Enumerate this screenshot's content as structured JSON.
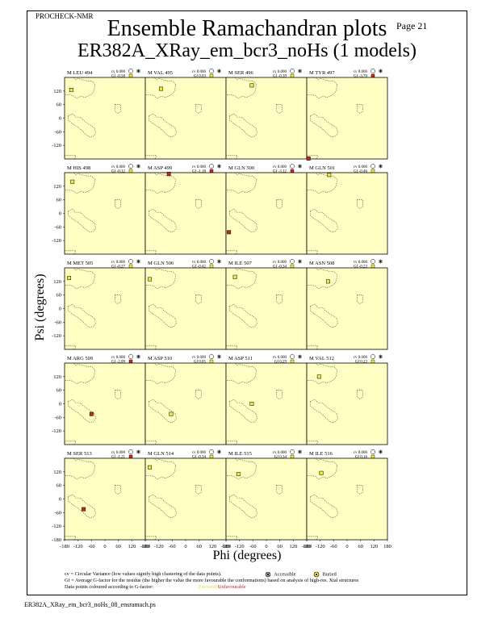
{
  "header": {
    "program": "PROCHECK-NMR",
    "page": "Page 21"
  },
  "title": "Ensemble Ramachandran plots",
  "subtitle": "ER382A_XRay_em_bcr3_noHs (1 models)",
  "chart_data": {
    "type": "scatter",
    "xlabel": "Phi (degrees)",
    "ylabel": "Psi (degrees)",
    "xlim": [
      -180,
      180
    ],
    "ylim": [
      -180,
      180
    ],
    "x_ticks": [
      "-180",
      "-120",
      "-60",
      "0",
      "60",
      "120",
      "180"
    ],
    "y_ticks": [
      "120",
      "60",
      "0",
      "-60",
      "-120"
    ],
    "bottom_y_ticks": [
      "120",
      "60",
      "0",
      "-60",
      "-120",
      "-180"
    ],
    "grid": false,
    "point_colors": {
      "favourable": "#f1e83c",
      "unfavourable": "#c8281e"
    },
    "panels": [
      {
        "residue": "M LEU 494",
        "cv": "cv 0.000",
        "gf": "Gf -0.58",
        "gf_value": -0.58,
        "points": [
          [
            -150,
            125
          ]
        ]
      },
      {
        "residue": "M VAL 495",
        "cv": "cv 0.000",
        "gf": "Gf 0.03",
        "gf_value": 0.03,
        "points": [
          [
            -110,
            130
          ]
        ]
      },
      {
        "residue": "M SER 496",
        "cv": "cv 0.000",
        "gf": "Gf -0.39",
        "gf_value": -0.39,
        "points": [
          [
            -65,
            145
          ]
        ]
      },
      {
        "residue": "M TYR 497",
        "cv": "cv 0.000",
        "gf": "Gf -3.70",
        "gf_value": -3.7,
        "points": [
          [
            -172,
            -178
          ]
        ]
      },
      {
        "residue": "M HIS 498",
        "cv": "cv 0.000",
        "gf": "Gf -0.12",
        "gf_value": -0.12,
        "points": [
          [
            -145,
            140
          ]
        ]
      },
      {
        "residue": "M ASP 499",
        "cv": "cv 0.000",
        "gf": "Gf -1.18",
        "gf_value": -1.18,
        "points": [
          [
            -75,
            175
          ]
        ]
      },
      {
        "residue": "M GLN 500",
        "cv": "cv 0.000",
        "gf": "Gf -3.12",
        "gf_value": -3.12,
        "points": [
          [
            -167,
            -83
          ]
        ]
      },
      {
        "residue": "M GLN 501",
        "cv": "cv 0.000",
        "gf": "Gf -0.46",
        "gf_value": -0.46,
        "points": [
          [
            -80,
            170
          ]
        ]
      },
      {
        "residue": "M MET 505",
        "cv": "cv 0.000",
        "gf": "Gf -0.27",
        "gf_value": -0.27,
        "points": [
          [
            -160,
            135
          ]
        ]
      },
      {
        "residue": "M GLN 506",
        "cv": "cv 0.000",
        "gf": "Gf -0.42",
        "gf_value": -0.42,
        "points": [
          [
            -160,
            130
          ]
        ]
      },
      {
        "residue": "M ILE 507",
        "cv": "cv 0.000",
        "gf": "Gf -0.34",
        "gf_value": -0.34,
        "points": [
          [
            -140,
            140
          ]
        ]
      },
      {
        "residue": "M ASN 508",
        "cv": "cv 0.000",
        "gf": "Gf -0.23",
        "gf_value": -0.23,
        "points": [
          [
            -85,
            120
          ]
        ]
      },
      {
        "residue": "M ARG 509",
        "cv": "cv 0.000",
        "gf": "Gf -2.09",
        "gf_value": -2.09,
        "points": [
          [
            -60,
            -45
          ]
        ]
      },
      {
        "residue": "M ASP 510",
        "cv": "cv 0.000",
        "gf": "Gf 0.05",
        "gf_value": 0.05,
        "points": [
          [
            -65,
            -45
          ]
        ]
      },
      {
        "residue": "M ASP 511",
        "cv": "cv 0.000",
        "gf": "Gf 0.29",
        "gf_value": 0.29,
        "points": [
          [
            -65,
            0
          ]
        ]
      },
      {
        "residue": "M VAL 512",
        "cv": "cv 0.000",
        "gf": "Gf 0.23",
        "gf_value": 0.23,
        "points": [
          [
            -125,
            120
          ]
        ]
      },
      {
        "residue": "M SER 513",
        "cv": "cv 0.000",
        "gf": "Gf -1.21",
        "gf_value": -1.21,
        "points": [
          [
            -95,
            -45
          ]
        ]
      },
      {
        "residue": "M GLN 514",
        "cv": "cv 0.000",
        "gf": "Gf -0.34",
        "gf_value": -0.34,
        "points": [
          [
            -160,
            140
          ]
        ]
      },
      {
        "residue": "M ILE 515",
        "cv": "cv 0.000",
        "gf": "Gf 0.34",
        "gf_value": 0.34,
        "points": [
          [
            -125,
            110
          ]
        ]
      },
      {
        "residue": "M ILE 516",
        "cv": "cv 0.000",
        "gf": "Gf 0.16",
        "gf_value": 0.16,
        "points": [
          [
            -115,
            115
          ]
        ]
      }
    ]
  },
  "footnotes": {
    "line1": "cv = Circular Variance (low values signify high clustering of the data points).",
    "line2": "Gf = Average G-factor for the residue (the higher the value the more favourable the conformations) based on analysis of high-res. Xtal structures",
    "line3": "Data points coloured according to G-factor:",
    "accessible": "Accessible",
    "buried": "Buried",
    "favourable": "Favourable",
    "unfavourable": "Unfavourable"
  },
  "filename": "ER382A_XRay_em_bcr3_noHs_08_ensramach.ps"
}
